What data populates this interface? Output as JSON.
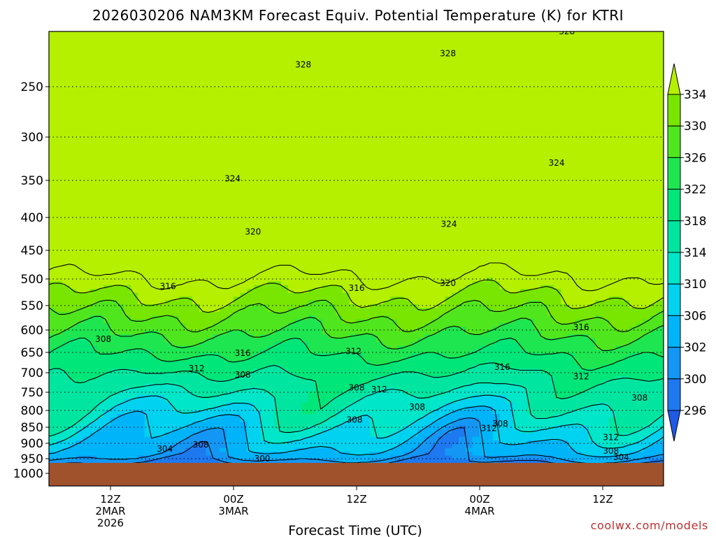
{
  "chart_data": {
    "type": "heatmap",
    "title": "2026030206 NAM3KM Forecast Equiv. Potential Temperature (K) for KTRI",
    "xlabel": "Forecast Time (UTC)",
    "ylabel": "",
    "y_axis": "pressure (hPa), inverted",
    "ylim": [
      1000,
      200
    ],
    "y_ticks": [
      "250",
      "300",
      "350",
      "400",
      "450",
      "500",
      "550",
      "600",
      "650",
      "700",
      "750",
      "800",
      "850",
      "900",
      "950",
      "1000"
    ],
    "x_ticks": [
      {
        "hour": 12,
        "lines": [
          "12Z",
          "2MAR",
          "2026"
        ]
      },
      {
        "hour": 24,
        "lines": [
          "00Z",
          "3MAR"
        ]
      },
      {
        "hour": 36,
        "lines": [
          "12Z"
        ]
      },
      {
        "hour": 48,
        "lines": [
          "00Z",
          "4MAR"
        ]
      },
      {
        "hour": 60,
        "lines": [
          "12Z"
        ]
      }
    ],
    "xlim": [
      6,
      66
    ],
    "grid": "dotted horizontal at pressure ticks",
    "ground_color": "#a0522d",
    "colorbar": {
      "levels": [
        "296",
        "300",
        "302",
        "306",
        "310",
        "314",
        "318",
        "322",
        "326",
        "330",
        "334"
      ],
      "colors": [
        "#1e5ae6",
        "#1e78f0",
        "#1496f5",
        "#00b4fa",
        "#00d2f0",
        "#00e6c8",
        "#00e6a0",
        "#00e678",
        "#1ee650",
        "#50e61e",
        "#78e600",
        "#b4f000"
      ]
    },
    "contour_labels": [
      {
        "value": "328",
        "hour": 56.5,
        "p": 200
      },
      {
        "value": "328",
        "hour": 30.8,
        "p": 230
      },
      {
        "value": "328",
        "hour": 44.9,
        "p": 220
      },
      {
        "value": "324",
        "hour": 23.9,
        "p": 348
      },
      {
        "value": "324",
        "hour": 55.5,
        "p": 330
      },
      {
        "value": "324",
        "hour": 45.0,
        "p": 410
      },
      {
        "value": "320",
        "hour": 25.9,
        "p": 422
      },
      {
        "value": "320",
        "hour": 44.9,
        "p": 508
      },
      {
        "value": "316",
        "hour": 17.6,
        "p": 514
      },
      {
        "value": "316",
        "hour": 36.0,
        "p": 517
      },
      {
        "value": "316",
        "hour": 57.9,
        "p": 594
      },
      {
        "value": "316",
        "hour": 24.9,
        "p": 652
      },
      {
        "value": "316",
        "hour": 50.2,
        "p": 686
      },
      {
        "value": "312",
        "hour": 35.7,
        "p": 648
      },
      {
        "value": "312",
        "hour": 20.4,
        "p": 690
      },
      {
        "value": "312",
        "hour": 57.9,
        "p": 710
      },
      {
        "value": "312",
        "hour": 38.2,
        "p": 743
      },
      {
        "value": "312",
        "hour": 48.9,
        "p": 853
      },
      {
        "value": "312",
        "hour": 60.8,
        "p": 882
      },
      {
        "value": "308",
        "hour": 11.3,
        "p": 620
      },
      {
        "value": "308",
        "hour": 24.9,
        "p": 705
      },
      {
        "value": "308",
        "hour": 36.0,
        "p": 738
      },
      {
        "value": "308",
        "hour": 41.9,
        "p": 790
      },
      {
        "value": "308",
        "hour": 63.6,
        "p": 765
      },
      {
        "value": "308",
        "hour": 50.0,
        "p": 840
      },
      {
        "value": "308",
        "hour": 35.8,
        "p": 828
      },
      {
        "value": "308",
        "hour": 20.8,
        "p": 905
      },
      {
        "value": "308",
        "hour": 60.8,
        "p": 925
      },
      {
        "value": "304",
        "hour": 17.3,
        "p": 918
      },
      {
        "value": "304",
        "hour": 61.8,
        "p": 945
      },
      {
        "value": "300",
        "hour": 26.8,
        "p": 950
      }
    ]
  },
  "credit": "coolwx.com/models"
}
